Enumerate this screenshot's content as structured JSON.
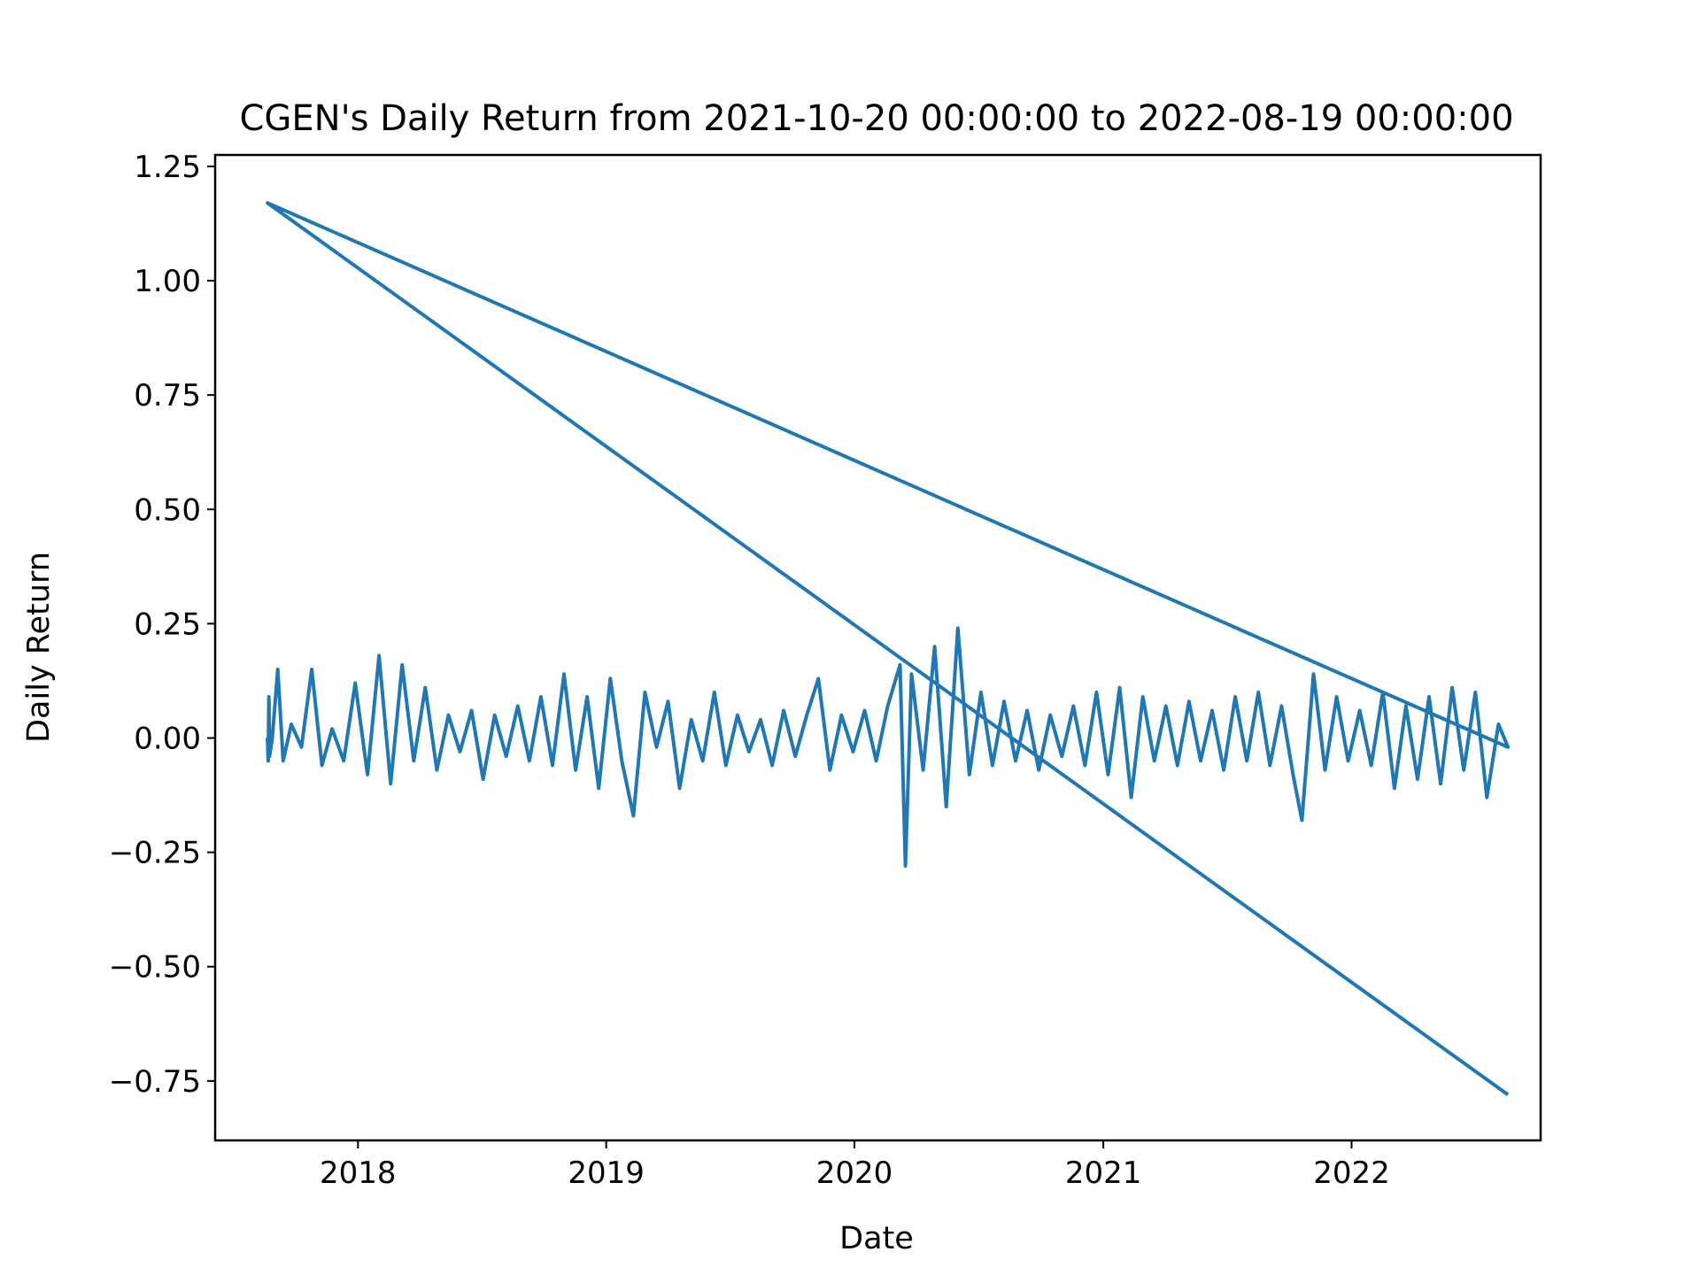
{
  "chart_data": {
    "type": "line",
    "title": "CGEN's Daily Return from 2021-10-20 00:00:00 to 2022-08-19 00:00:00",
    "xlabel": "Date",
    "ylabel": "Daily Return",
    "xlim": [
      "2017-06-05",
      "2022-10-06"
    ],
    "ylim": [
      -0.88,
      1.275
    ],
    "x_ticks": [
      "2018-01-01",
      "2019-01-01",
      "2020-01-01",
      "2021-01-01",
      "2022-01-01"
    ],
    "x_tick_labels": [
      "2018",
      "2019",
      "2020",
      "2021",
      "2022"
    ],
    "y_ticks": [
      1.25,
      1.0,
      0.75,
      0.5,
      0.25,
      0.0,
      -0.25,
      -0.5,
      -0.75
    ],
    "y_tick_labels": [
      "1.25",
      "1.00",
      "0.75",
      "0.50",
      "0.25",
      "0.00",
      "−0.25",
      "−0.50",
      "−0.75"
    ],
    "grid": false,
    "color": "#1f77b4",
    "series": [
      {
        "x": [
          "2017-08-21",
          "2017-08-22",
          "2017-08-23",
          "2017-08-24",
          "2017-08-28",
          "2017-09-05",
          "2017-09-13",
          "2017-09-25",
          "2017-10-10",
          "2017-10-25",
          "2017-11-09",
          "2017-11-24",
          "2017-12-11",
          "2017-12-28",
          "2018-01-15",
          "2018-02-01",
          "2018-02-18",
          "2018-03-07",
          "2018-03-24",
          "2018-04-10",
          "2018-04-27",
          "2018-05-14",
          "2018-05-31",
          "2018-06-17",
          "2018-07-04",
          "2018-07-21",
          "2018-08-07",
          "2018-08-24",
          "2018-09-10",
          "2018-09-27",
          "2018-10-14",
          "2018-10-31",
          "2018-11-17",
          "2018-12-04",
          "2018-12-21",
          "2019-01-07",
          "2019-01-24",
          "2019-02-10",
          "2019-02-27",
          "2019-03-16",
          "2019-04-02",
          "2019-04-19",
          "2019-05-06",
          "2019-05-23",
          "2019-06-09",
          "2019-06-26",
          "2019-07-13",
          "2019-07-30",
          "2019-08-16",
          "2019-09-02",
          "2019-09-19",
          "2019-10-06",
          "2019-10-23",
          "2019-11-09",
          "2019-11-26",
          "2019-12-13",
          "2019-12-30",
          "2020-01-16",
          "2020-02-02",
          "2020-02-19",
          "2020-03-08",
          "2020-03-16",
          "2020-03-25",
          "2020-04-11",
          "2020-04-28",
          "2020-05-15",
          "2020-06-01",
          "2020-06-18",
          "2020-07-05",
          "2020-07-22",
          "2020-08-08",
          "2020-08-25",
          "2020-09-11",
          "2020-09-28",
          "2020-10-15",
          "2020-11-01",
          "2020-11-18",
          "2020-12-05",
          "2020-12-22",
          "2021-01-08",
          "2021-01-25",
          "2021-02-11",
          "2021-02-28",
          "2021-03-17",
          "2021-04-03",
          "2021-04-20",
          "2021-05-07",
          "2021-05-24",
          "2021-06-10",
          "2021-06-27",
          "2021-07-14",
          "2021-07-31",
          "2021-08-17",
          "2021-09-03",
          "2021-09-20",
          "2021-10-07",
          "2021-10-20",
          "2021-11-06",
          "2021-11-23",
          "2021-12-10",
          "2021-12-27",
          "2022-01-13",
          "2022-01-30",
          "2022-02-16",
          "2022-03-05",
          "2022-03-22",
          "2022-04-08",
          "2022-04-25",
          "2022-05-12",
          "2022-05-29",
          "2022-06-15",
          "2022-07-02",
          "2022-07-19",
          "2022-08-05",
          "2022-08-19",
          "2017-08-21",
          "2022-08-19"
        ],
        "y": [
          0.0,
          -0.05,
          0.09,
          -0.04,
          0.0,
          0.15,
          -0.05,
          0.03,
          -0.02,
          0.15,
          -0.06,
          0.02,
          -0.05,
          0.12,
          -0.08,
          0.18,
          -0.1,
          0.16,
          -0.05,
          0.11,
          -0.07,
          0.05,
          -0.03,
          0.06,
          -0.09,
          0.05,
          -0.04,
          0.07,
          -0.05,
          0.09,
          -0.06,
          0.14,
          -0.07,
          0.09,
          -0.11,
          0.13,
          -0.05,
          -0.17,
          0.1,
          -0.02,
          0.08,
          -0.11,
          0.04,
          -0.05,
          0.1,
          -0.06,
          0.05,
          -0.03,
          0.04,
          -0.06,
          0.06,
          -0.04,
          0.05,
          0.13,
          -0.07,
          0.05,
          -0.03,
          0.06,
          -0.05,
          0.07,
          0.16,
          -0.28,
          0.14,
          -0.07,
          0.2,
          -0.15,
          0.24,
          -0.08,
          0.1,
          -0.06,
          0.08,
          -0.05,
          0.06,
          -0.07,
          0.05,
          -0.04,
          0.07,
          -0.06,
          0.1,
          -0.08,
          0.11,
          -0.13,
          0.09,
          -0.05,
          0.07,
          -0.06,
          0.08,
          -0.05,
          0.06,
          -0.07,
          0.09,
          -0.05,
          0.1,
          -0.06,
          0.07,
          -0.08,
          -0.18,
          0.14,
          -0.07,
          0.09,
          -0.05,
          0.06,
          -0.06,
          0.1,
          -0.11,
          0.07,
          -0.09,
          0.09,
          -0.1,
          0.11,
          -0.07,
          0.1,
          -0.13,
          0.03,
          -0.02,
          1.17,
          -0.78
        ]
      }
    ]
  }
}
